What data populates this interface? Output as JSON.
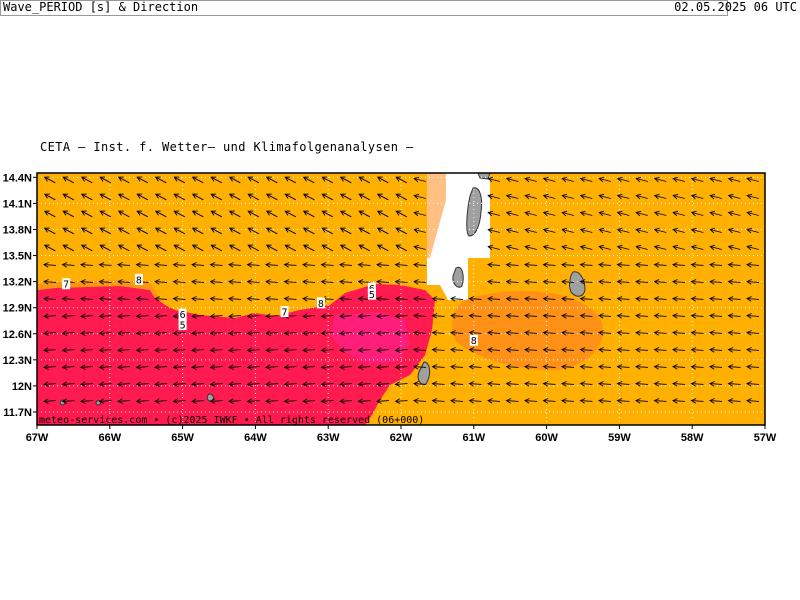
{
  "header": {
    "institute": "CETA – Inst. f. Wetter– und Klimafolgenanalysen –",
    "parameter": "Wave_PERIOD [s] & Direction",
    "datetime": "02.05.2025 06 UTC"
  },
  "footer": {
    "credit": "meteo-services.com • (c)2025 IWKF • All rights reserved (06+000)"
  },
  "axes": {
    "lat_labels": [
      "14.4N",
      "14.1N",
      "13.8N",
      "13.5N",
      "13.2N",
      "12.9N",
      "12.6N",
      "12.3N",
      "12N",
      "11.7N"
    ],
    "lon_labels": [
      "67W",
      "66W",
      "65W",
      "64W",
      "63W",
      "62W",
      "61W",
      "60W",
      "59W",
      "58W",
      "57W"
    ]
  },
  "contour_labels": [
    {
      "text": "7",
      "lon": -66.6,
      "lat": 13.17
    },
    {
      "text": "8",
      "lon": -65.6,
      "lat": 13.22
    },
    {
      "text": "6",
      "lon": -65.0,
      "lat": 12.82
    },
    {
      "text": "5",
      "lon": -65.0,
      "lat": 12.7
    },
    {
      "text": "7",
      "lon": -63.6,
      "lat": 12.85
    },
    {
      "text": "8",
      "lon": -63.1,
      "lat": 12.95
    },
    {
      "text": "6",
      "lon": -62.4,
      "lat": 13.12
    },
    {
      "text": "5",
      "lon": -62.4,
      "lat": 13.05
    },
    {
      "text": "8",
      "lon": -61.0,
      "lat": 12.52
    }
  ],
  "colors": {
    "period_7_8": "#ffb000",
    "period_8_9": "#ff8c1a",
    "period_5_6": "#ff1a50",
    "period_4_5": "#ff2080",
    "land": "#a0a0a0",
    "nodata": "#ffffff"
  }
}
